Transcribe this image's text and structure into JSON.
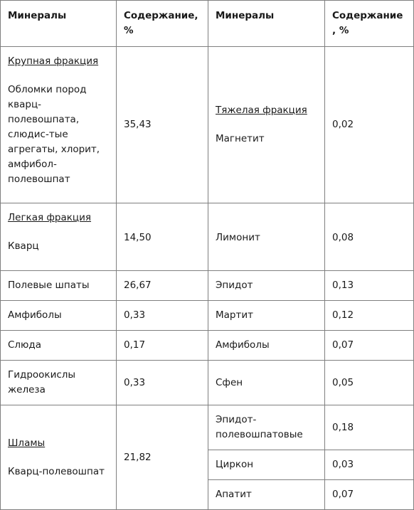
{
  "header": {
    "col1": "Минералы",
    "col2": "Содержание,%",
    "col3": "Минералы",
    "col4": "Содержание, %"
  },
  "left": {
    "coarse_title": "Крупная фракция",
    "coarse_item": "Обломки пород кварц-полевошпата, слюдис-тые агрегаты, хлорит, амфибол-полевошпат",
    "coarse_value": "35,43",
    "light_title": "Легкая фракция",
    "quartz": "Кварц",
    "quartz_value": "14,50",
    "feldspar": "Полевые шпаты",
    "feldspar_value": "26,67",
    "amphibole": "Амфиболы",
    "amphibole_value": "0,33",
    "mica": "Слюда",
    "mica_value": "0,17",
    "iron": "Гидроокислы железа",
    "iron_value": "0,33",
    "slime_title": "Шламы",
    "slime_item": "Кварц-полевошпат",
    "slime_value": "21,82"
  },
  "right": {
    "heavy_title": "Тяжелая фракция",
    "magnetite": "Магнетит",
    "magnetite_value": "0,02",
    "limonite": "Лимонит",
    "limonite_value": "0,08",
    "epidote": "Эпидот",
    "epidote_value": "0,13",
    "martite": "Мартит",
    "martite_value": "0,12",
    "amphiboles": "Амфиболы",
    "amphiboles_value": "0,07",
    "sphene": "Сфен",
    "sphene_value": "0,05",
    "epidote_feldspar": "Эпидот-полевошпатовые",
    "epidote_feldspar_value": "0,18",
    "zircon": "Циркон",
    "zircon_value": "0,03",
    "apatite": "Апатит",
    "apatite_value": "0,07"
  }
}
